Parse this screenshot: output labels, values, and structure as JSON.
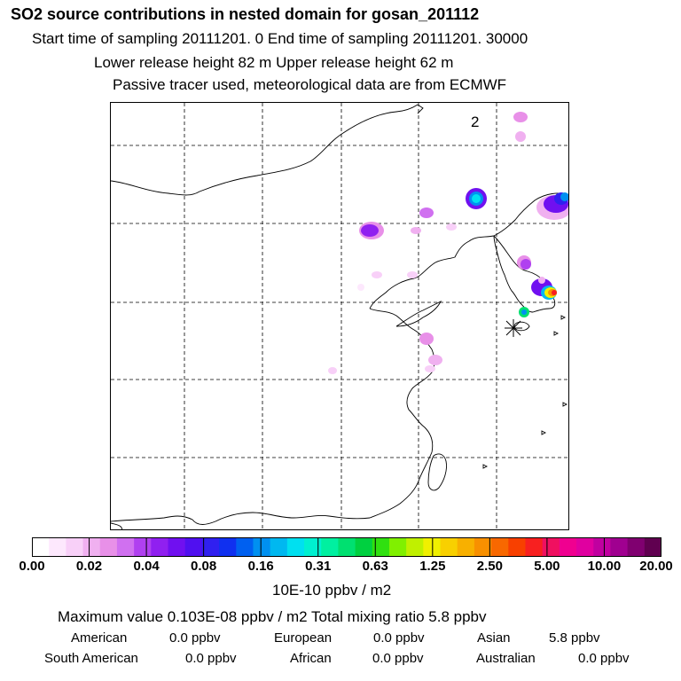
{
  "header": {
    "title": "SO2 source contributions in nested domain for gosan_201112",
    "sampling_line": "Start time of sampling 20111201.      0      End time of sampling 20111201. 30000",
    "release_line": "Lower release height   82 m            Upper release height   62 m",
    "tracer_line": "Passive tracer used, meteorological data are from ECMWF"
  },
  "chart_data": {
    "type": "heatmap",
    "title": "SO2 source contributions in nested domain for gosan_201112",
    "panel_label": "2",
    "receptor_marker": "gosan",
    "colorbar": {
      "label": "10E-10 ppbv / m2",
      "ticks": [
        "0.00",
        "0.02",
        "0.04",
        "0.08",
        "0.16",
        "0.31",
        "0.63",
        "1.25",
        "2.50",
        "5.00",
        "10.00",
        "20.00"
      ],
      "colors": [
        "#ffffff",
        "#fde8fd",
        "#f8d0f8",
        "#f0b0f0",
        "#e890e8",
        "#d070f0",
        "#b040f0",
        "#9020f0",
        "#7010f0",
        "#5010f0",
        "#3020f0",
        "#1030f0",
        "#0060f0",
        "#0090f0",
        "#00b8f0",
        "#00e0f0",
        "#00f0d0",
        "#00f0a0",
        "#00e070",
        "#00d040",
        "#30e010",
        "#80f000",
        "#c0f000",
        "#f0f000",
        "#f8d000",
        "#f8b000",
        "#f89000",
        "#f86800",
        "#f84000",
        "#f82020",
        "#f01060",
        "#f00090",
        "#e000a0",
        "#c000a0",
        "#a00090",
        "#800070",
        "#600050"
      ],
      "ylim": [
        0,
        20
      ]
    },
    "plumes": [
      {
        "region": "northeast-corner",
        "max_value": 0.16
      },
      {
        "region": "inner-mongolia",
        "max_value": 0.16
      },
      {
        "region": "korea-southeast",
        "max_value": 10.0
      },
      {
        "region": "korea-southwest",
        "max_value": 0.31
      },
      {
        "region": "north-china",
        "max_value": 0.04
      },
      {
        "region": "shandong",
        "max_value": 0.04
      }
    ]
  },
  "summary": {
    "max_line": "Maximum value  0.103E-08 ppbv / m2      Total mixing ratio       5.8 ppbv",
    "row1": {
      "american_label": "American",
      "american_value": "0.0 ppbv",
      "european_label": "European",
      "european_value": "0.0 ppbv",
      "asian_label": "Asian",
      "asian_value": "5.8 ppbv"
    },
    "row2": {
      "samerican_label": "South American",
      "samerican_value": "0.0 ppbv",
      "african_label": "African",
      "african_value": "0.0 ppbv",
      "australian_label": "Australian",
      "australian_value": "0.0 ppbv"
    }
  }
}
